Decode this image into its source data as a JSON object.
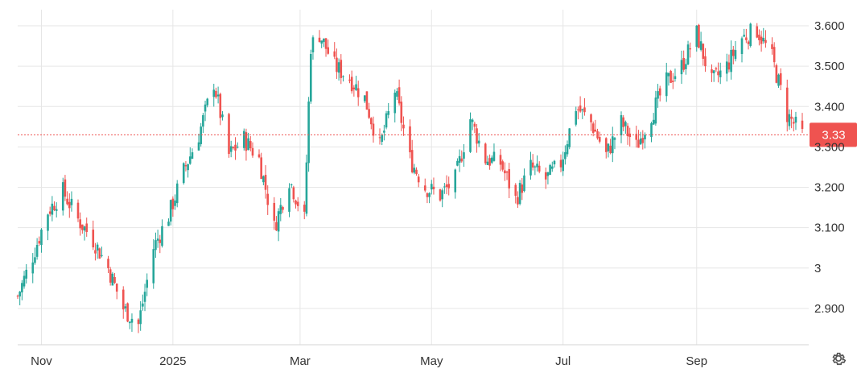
{
  "chart_data": {
    "type": "candlestick",
    "x_start": "2024-10-21",
    "x_end": "2025-10-20",
    "xticks": [
      "Nov",
      "2025",
      "Mar",
      "May",
      "Jul",
      "Sep"
    ],
    "xtick_dates": [
      "2024-11-01",
      "2025-01-01",
      "2025-03-01",
      "2025-05-01",
      "2025-07-01",
      "2025-09-01"
    ],
    "ylim": [
      2.81,
      3.64
    ],
    "yticks": [
      2.9,
      3.0,
      3.1,
      3.2,
      3.3,
      3.4,
      3.5,
      3.6
    ],
    "ytick_labels": [
      "2.900",
      "3",
      "3.100",
      "3.200",
      "3.300",
      "3.400",
      "3.500",
      "3.600"
    ],
    "last_price": 3.33,
    "last_price_label": "3.33",
    "grid": true,
    "colors": {
      "up": "#26a69a",
      "down": "#ef5350",
      "grid": "#e6e6e6",
      "last_price": "#ef5350"
    },
    "anchors": [
      [
        "2024-10-21",
        2.93
      ],
      [
        "2024-10-28",
        3.03
      ],
      [
        "2024-11-04",
        3.14
      ],
      [
        "2024-11-11",
        3.19
      ],
      [
        "2024-11-18",
        3.12
      ],
      [
        "2024-11-25",
        3.07
      ],
      [
        "2024-12-02",
        3.0
      ],
      [
        "2024-12-09",
        2.9
      ],
      [
        "2024-12-16",
        2.86
      ],
      [
        "2024-12-23",
        3.05
      ],
      [
        "2024-12-30",
        3.13
      ],
      [
        "2025-01-06",
        3.24
      ],
      [
        "2025-01-13",
        3.33
      ],
      [
        "2025-01-20",
        3.46
      ],
      [
        "2025-01-27",
        3.28
      ],
      [
        "2025-02-03",
        3.32
      ],
      [
        "2025-02-10",
        3.27
      ],
      [
        "2025-02-17",
        3.1
      ],
      [
        "2025-02-24",
        3.22
      ],
      [
        "2025-03-03",
        3.12
      ],
      [
        "2025-03-06",
        3.55
      ],
      [
        "2025-03-10",
        3.58
      ],
      [
        "2025-03-17",
        3.5
      ],
      [
        "2025-03-24",
        3.47
      ],
      [
        "2025-03-31",
        3.42
      ],
      [
        "2025-04-07",
        3.3
      ],
      [
        "2025-04-14",
        3.44
      ],
      [
        "2025-04-21",
        3.27
      ],
      [
        "2025-04-28",
        3.2
      ],
      [
        "2025-05-05",
        3.18
      ],
      [
        "2025-05-12",
        3.22
      ],
      [
        "2025-05-19",
        3.37
      ],
      [
        "2025-05-26",
        3.27
      ],
      [
        "2025-06-02",
        3.26
      ],
      [
        "2025-06-09",
        3.17
      ],
      [
        "2025-06-16",
        3.25
      ],
      [
        "2025-06-23",
        3.22
      ],
      [
        "2025-06-30",
        3.26
      ],
      [
        "2025-07-07",
        3.4
      ],
      [
        "2025-07-14",
        3.36
      ],
      [
        "2025-07-21",
        3.28
      ],
      [
        "2025-07-28",
        3.36
      ],
      [
        "2025-08-04",
        3.3
      ],
      [
        "2025-08-11",
        3.38
      ],
      [
        "2025-08-18",
        3.46
      ],
      [
        "2025-08-25",
        3.5
      ],
      [
        "2025-09-01",
        3.58
      ],
      [
        "2025-09-08",
        3.46
      ],
      [
        "2025-09-15",
        3.5
      ],
      [
        "2025-09-22",
        3.57
      ],
      [
        "2025-09-29",
        3.59
      ],
      [
        "2025-10-06",
        3.52
      ],
      [
        "2025-10-13",
        3.38
      ],
      [
        "2025-10-20",
        3.33
      ]
    ]
  }
}
